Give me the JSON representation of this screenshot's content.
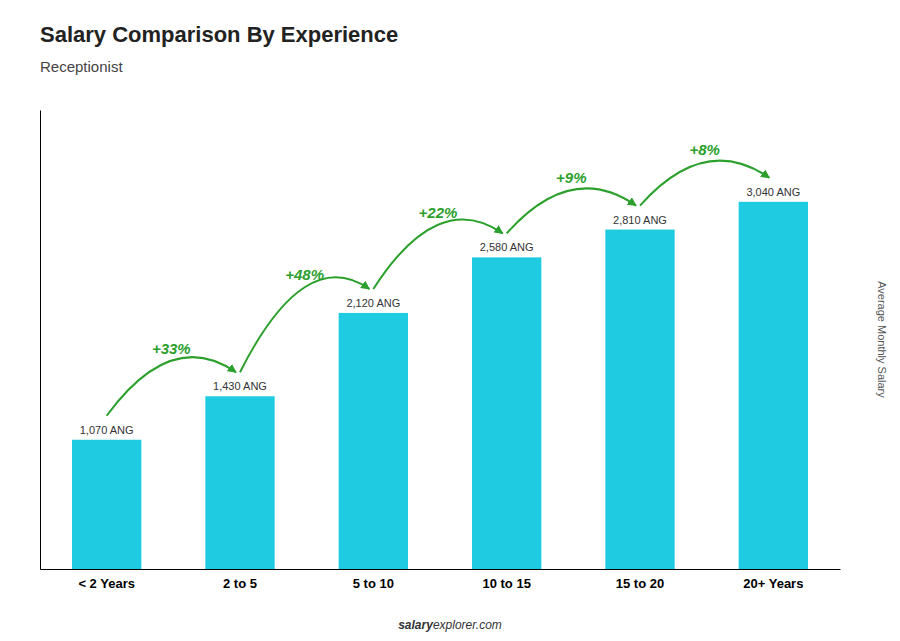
{
  "chart_data": {
    "type": "bar",
    "title": "Salary Comparison By Experience",
    "subtitle": "Receptionist",
    "ylabel": "Average Monthly Salary",
    "categories": [
      "< 2 Years",
      "2 to 5",
      "5 to 10",
      "10 to 15",
      "15 to 20",
      "20+ Years"
    ],
    "values": [
      1070,
      1430,
      2120,
      2580,
      2810,
      3040
    ],
    "value_labels": [
      "1,070 ANG",
      "1,430 ANG",
      "2,120 ANG",
      "2,580 ANG",
      "2,810 ANG",
      "3,040 ANG"
    ],
    "data_labels": true,
    "annotations": [
      "+33%",
      "+48%",
      "+22%",
      "+9%",
      "+8%"
    ],
    "footer": [
      "salary",
      "explorer.com"
    ],
    "color": "#1ecbe1",
    "ylim": [
      0,
      3800
    ],
    "tick_labels": "x",
    "grid": false
  }
}
